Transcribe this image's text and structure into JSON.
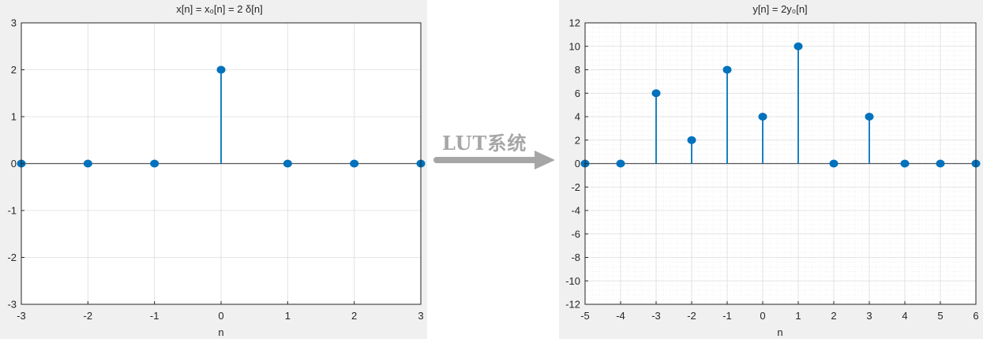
{
  "connector": {
    "label": "LUT系统",
    "color": "#a6a6a6"
  },
  "chart_data": [
    {
      "type": "stem",
      "title": "x[n] = x₀[n] =  2 δ[n]",
      "xlabel": "n",
      "ylabel": "",
      "xlim": [
        -3,
        3
      ],
      "ylim": [
        -3,
        3
      ],
      "xticks": [
        "-3",
        "-2",
        "-1",
        "0",
        "1",
        "2",
        "3"
      ],
      "yticks": [
        "-3",
        "-2",
        "-1",
        "0",
        "1",
        "2",
        "3"
      ],
      "grid": "major",
      "color": "#0072bd",
      "x": [
        -3,
        -2,
        -1,
        0,
        1,
        2,
        3
      ],
      "values": [
        0,
        0,
        0,
        2,
        0,
        0,
        0
      ]
    },
    {
      "type": "stem",
      "title": "y[n] = 2y₀[n]",
      "xlabel": "n",
      "ylabel": "",
      "xlim": [
        -5,
        6
      ],
      "ylim": [
        -12,
        12
      ],
      "xticks": [
        "-5",
        "-4",
        "-3",
        "-2",
        "-1",
        "0",
        "1",
        "2",
        "3",
        "4",
        "5",
        "6"
      ],
      "yticks": [
        "-12",
        "-10",
        "-8",
        "-6",
        "-4",
        "-2",
        "0",
        "2",
        "4",
        "6",
        "8",
        "10",
        "12"
      ],
      "grid": "major+minor",
      "color": "#0072bd",
      "x": [
        -5,
        -4,
        -3,
        -2,
        -1,
        0,
        1,
        2,
        3,
        4,
        5,
        6
      ],
      "values": [
        0,
        0,
        6,
        2,
        8,
        4,
        10,
        0,
        4,
        0,
        0,
        0
      ]
    }
  ]
}
